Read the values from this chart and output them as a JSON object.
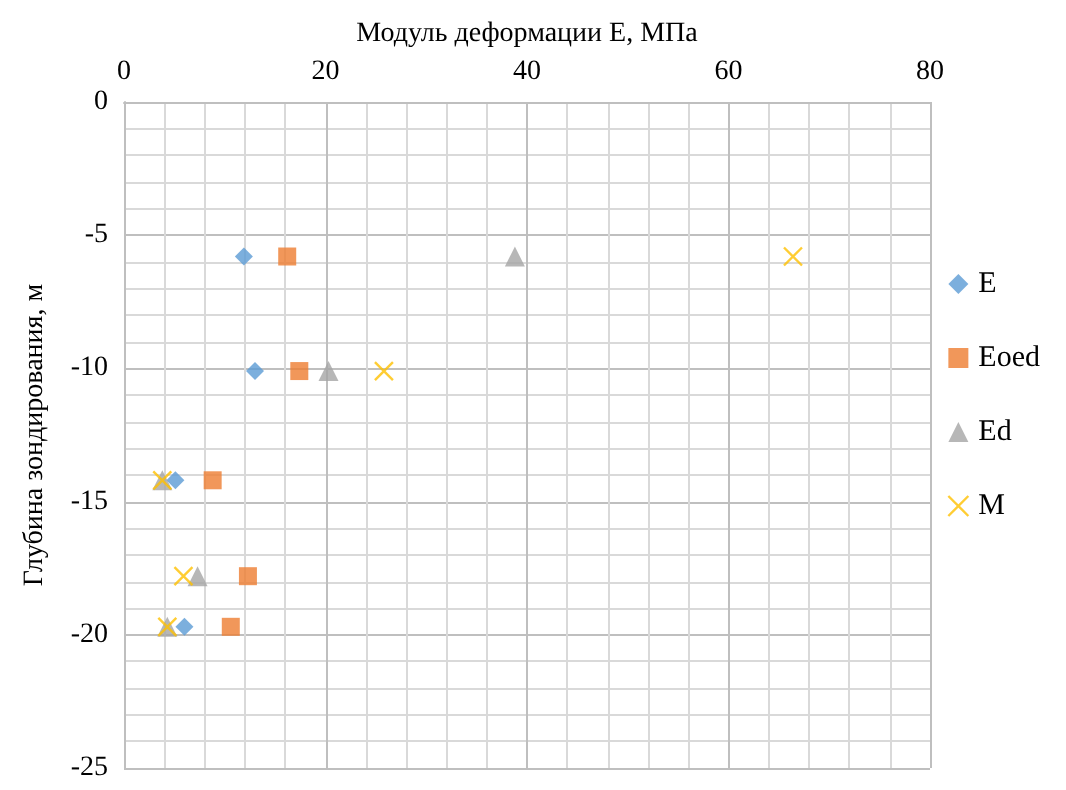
{
  "chart_data": {
    "type": "scatter",
    "xlabel": "Модуль деформации Е, МПа",
    "ylabel": "Глубина зондирования, м",
    "xlim": [
      0,
      80
    ],
    "xticks": [
      0,
      20,
      40,
      60,
      80
    ],
    "ylim": [
      -25,
      0
    ],
    "yticks": [
      -25,
      -20,
      -15,
      -10,
      -5,
      0
    ],
    "grid": true,
    "legend": "right",
    "series": [
      {
        "name": "E",
        "color": "#5b9bd5",
        "marker": "diamond",
        "x": [
          11.9,
          13.0,
          5.1,
          6.0
        ],
        "values": [
          -5.8,
          -10.1,
          -14.2,
          -19.7
        ]
      },
      {
        "name": "Eoed",
        "color": "#ed7d31",
        "marker": "square",
        "x": [
          16.2,
          17.4,
          8.8,
          12.3,
          10.6
        ],
        "values": [
          -5.8,
          -10.1,
          -14.2,
          -17.8,
          -19.7
        ]
      },
      {
        "name": "Ed",
        "color": "#a5a5a5",
        "marker": "triangle",
        "x": [
          38.8,
          20.3,
          3.8,
          7.3,
          4.3
        ],
        "values": [
          -5.8,
          -10.1,
          -14.2,
          -17.8,
          -19.7
        ]
      },
      {
        "name": "M",
        "color": "#ffc000",
        "marker": "cross",
        "x": [
          66.4,
          25.8,
          3.8,
          5.9,
          4.3
        ],
        "values": [
          -5.8,
          -10.1,
          -14.2,
          -17.8,
          -19.7
        ]
      }
    ]
  }
}
